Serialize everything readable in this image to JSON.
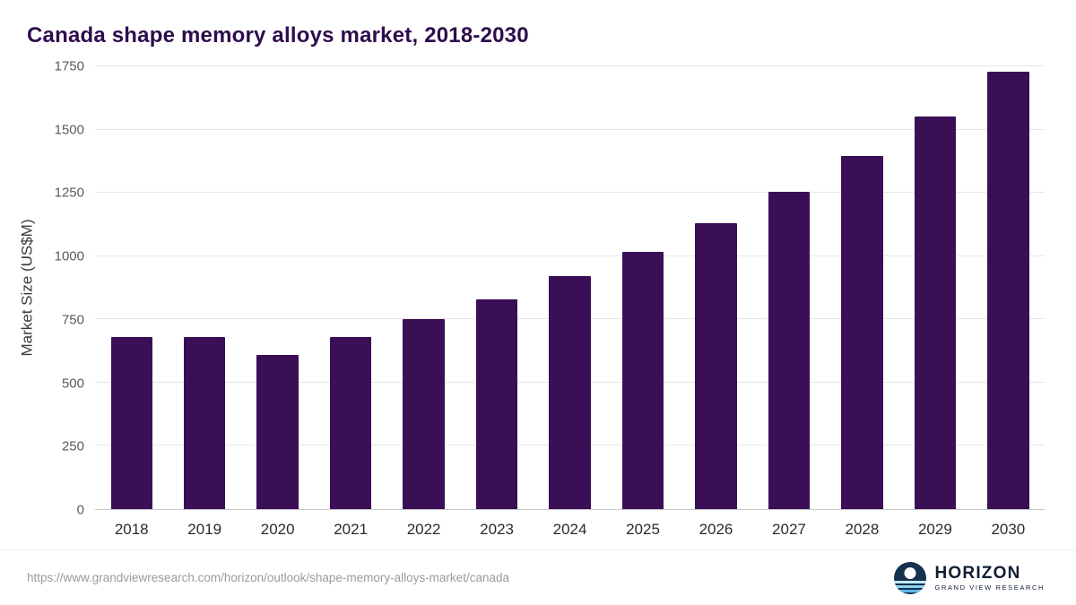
{
  "title": "Canada shape memory alloys market, 2018-2030",
  "footer": {
    "source_url": "https://www.grandviewresearch.com/horizon/outlook/shape-memory-alloys-market/canada",
    "logo": {
      "name": "HORIZON",
      "subtitle": "GRAND VIEW RESEARCH",
      "icon": "horizon-sun-over-water-icon"
    }
  },
  "colors": {
    "bar": "#3b0f56",
    "title": "#2e0d4e",
    "gridline": "#e7e7e7",
    "axis_line": "#c9c9c9",
    "tick_text": "#5a5a5a",
    "logo_navy": "#16314e"
  },
  "chart_data": {
    "type": "bar",
    "title": "Canada shape memory alloys market, 2018-2030",
    "xlabel": "",
    "ylabel": "Market Size (US$M)",
    "categories": [
      "2018",
      "2019",
      "2020",
      "2021",
      "2022",
      "2023",
      "2024",
      "2025",
      "2026",
      "2027",
      "2028",
      "2029",
      "2030"
    ],
    "values": [
      680,
      680,
      610,
      680,
      750,
      830,
      920,
      1015,
      1130,
      1255,
      1395,
      1550,
      1730
    ],
    "ylim": [
      0,
      1750
    ],
    "yticks": [
      0,
      250,
      500,
      750,
      1000,
      1250,
      1500,
      1750
    ],
    "grid": "horizontal",
    "legend": "none",
    "bar_color": "#3b0f56"
  }
}
